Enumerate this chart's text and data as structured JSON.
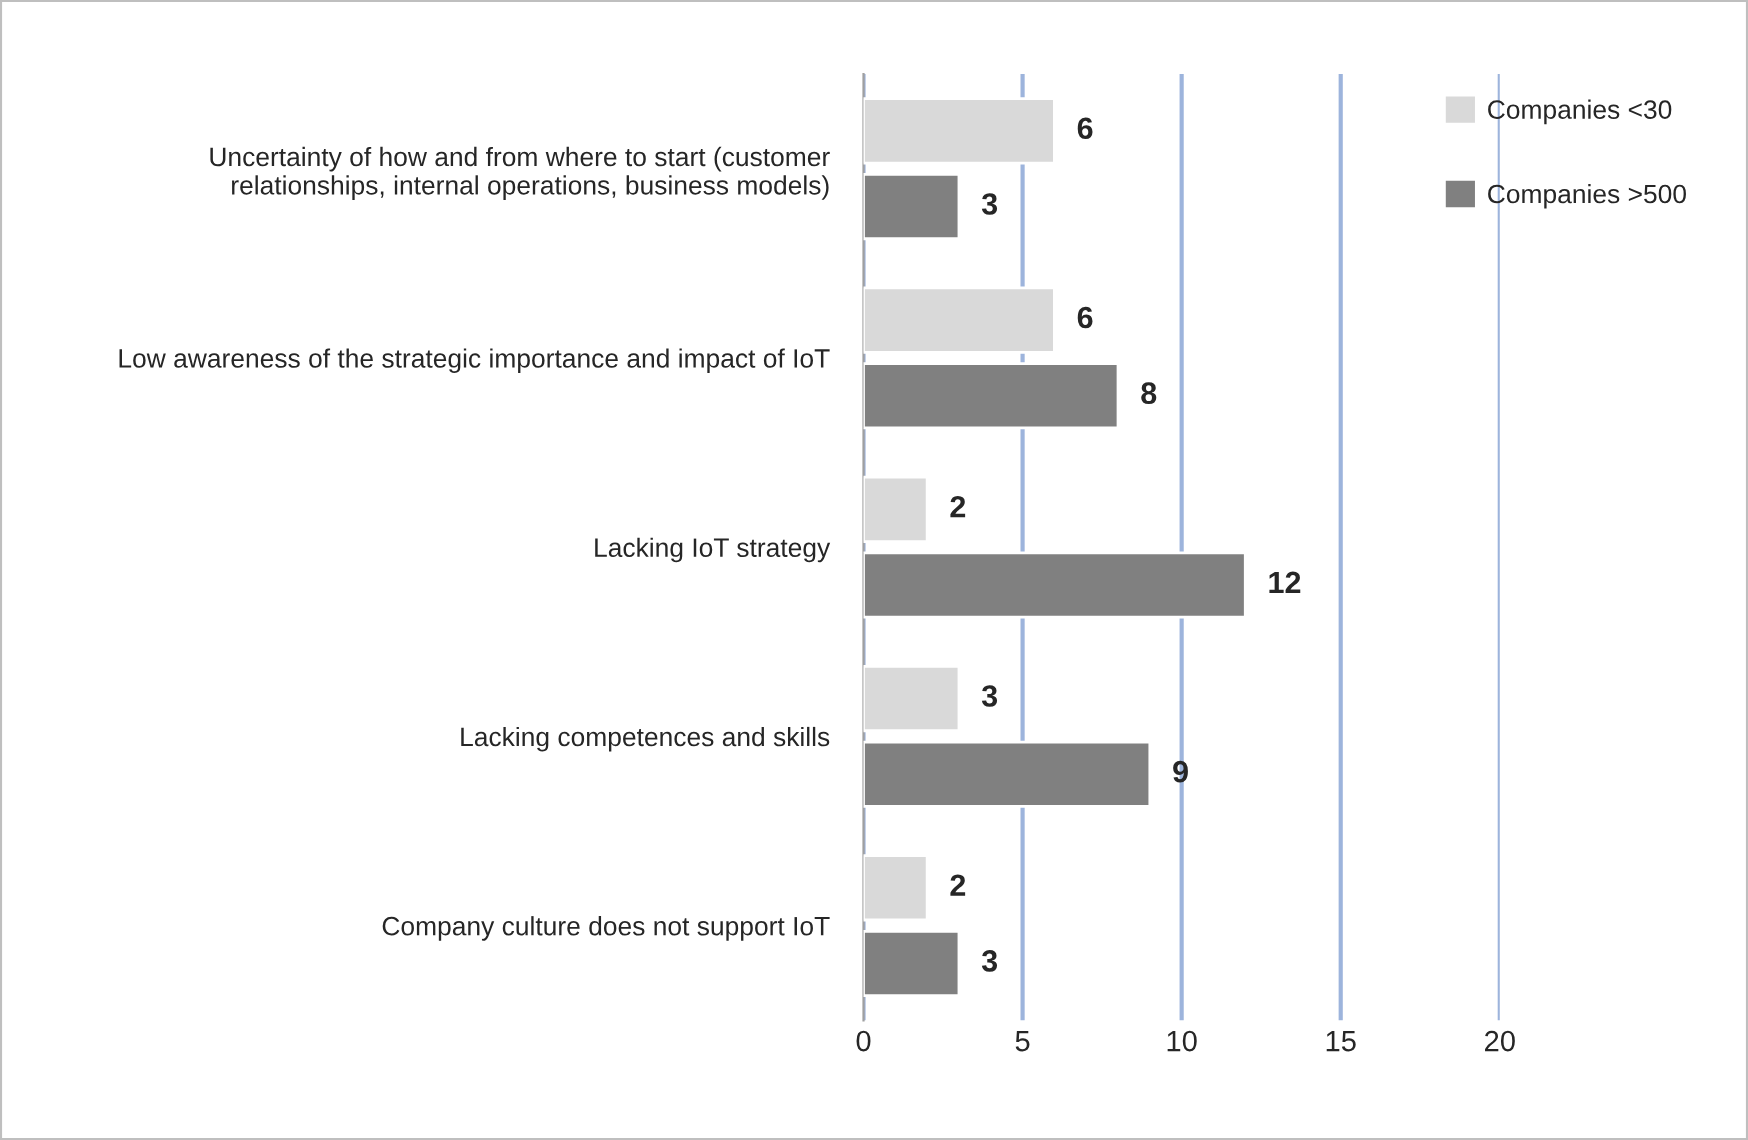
{
  "chart_data": {
    "type": "bar",
    "orientation": "horizontal",
    "categories": [
      "Uncertainty of how and from where to start (customer\nrelationships, internal operations, business models)",
      "Low awareness of the strategic importance and impact of IoT",
      "Lacking IoT strategy",
      "Lacking competences and skills",
      "Company culture does not support IoT"
    ],
    "series": [
      {
        "name": "Companies <30",
        "color": "#d9d9d9",
        "values": [
          6,
          6,
          2,
          3,
          2
        ]
      },
      {
        "name": "Companies >500",
        "color": "#808080",
        "values": [
          3,
          8,
          12,
          9,
          3
        ]
      }
    ],
    "xlim": [
      0,
      20
    ],
    "xticks": [
      0,
      5,
      10,
      15,
      20
    ],
    "grid": "x",
    "legend": "top right",
    "data_labels": true
  }
}
